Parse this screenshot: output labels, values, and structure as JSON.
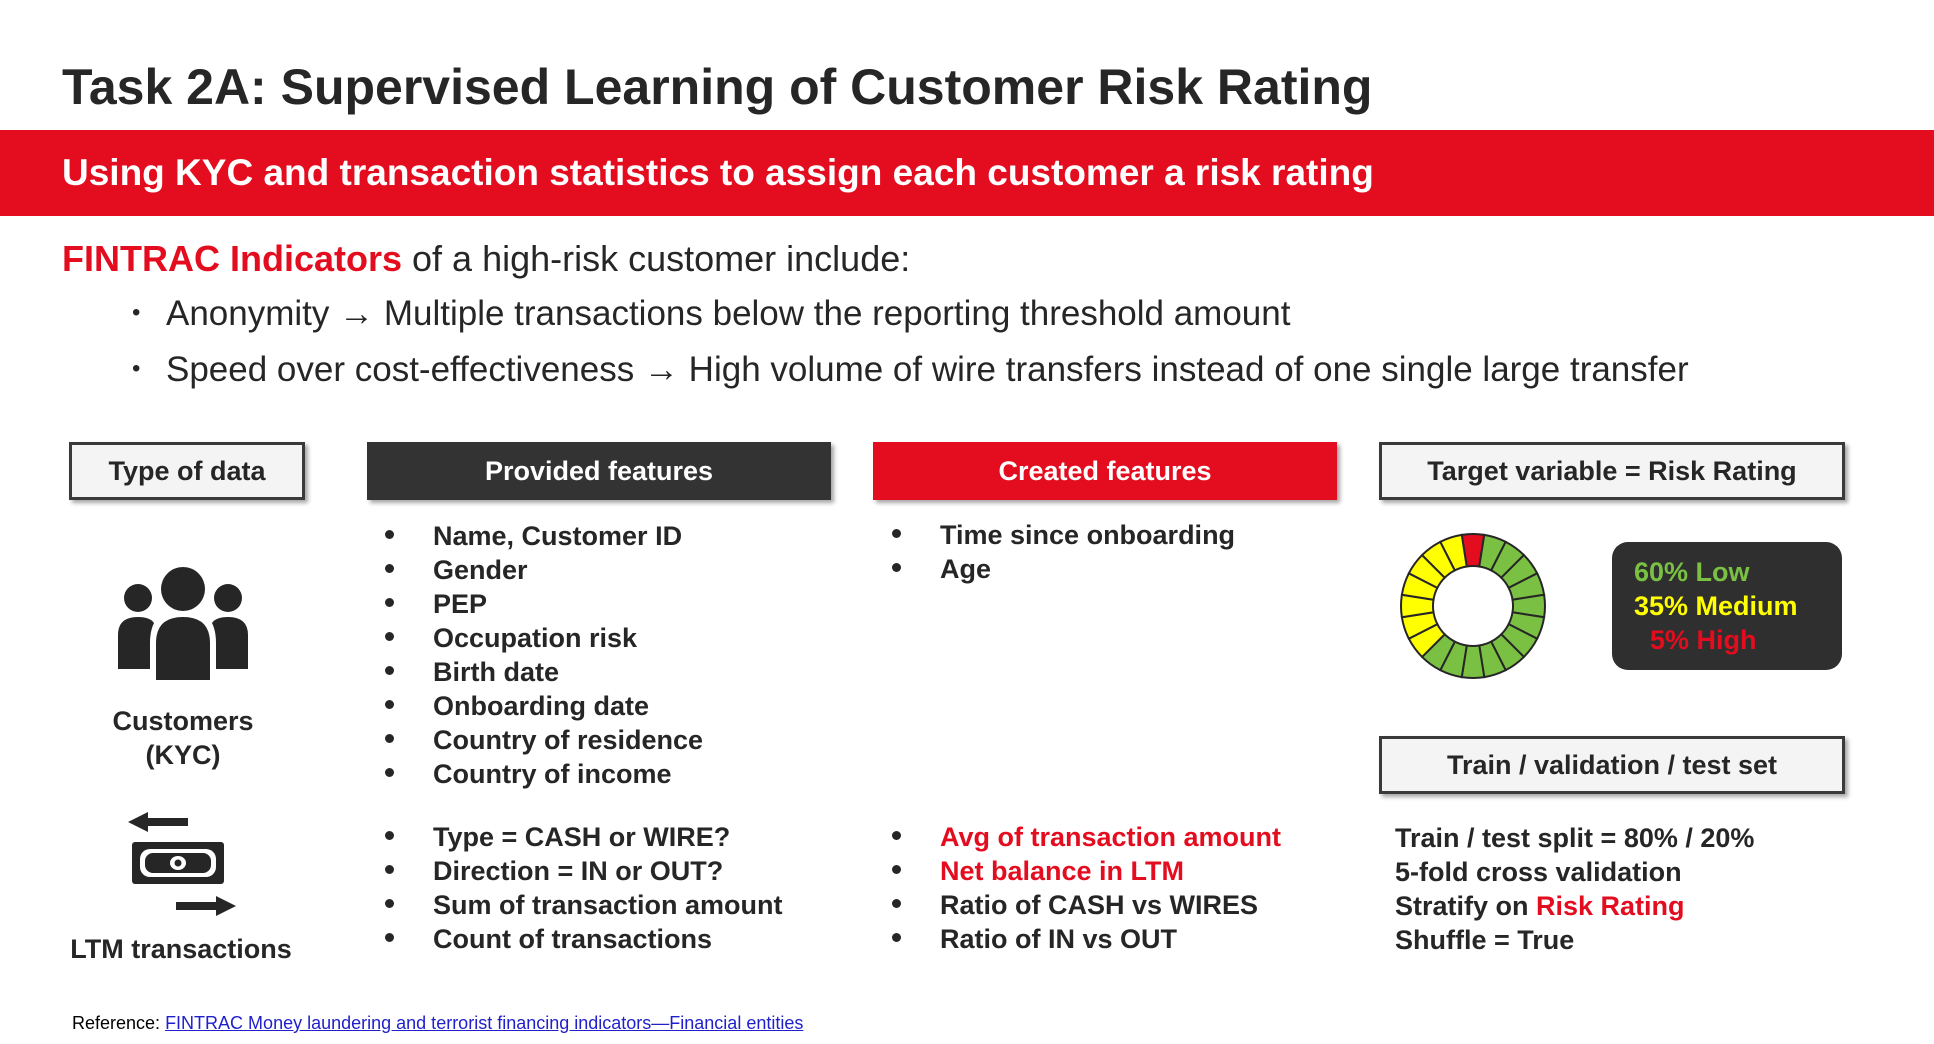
{
  "title": "Task 2A: Supervised Learning of Customer Risk Rating",
  "banner": "Using KYC and transaction statistics to assign each customer a risk rating",
  "intro": {
    "highlight": "FINTRAC Indicators",
    "rest": " of a high-risk customer include:",
    "bullets": [
      "Anonymity → Multiple transactions below the reporting threshold amount",
      "Speed over cost-effectiveness → High volume of wire transfers instead of one single large transfer"
    ]
  },
  "headers": {
    "type_of_data": "Type of data",
    "provided": "Provided features",
    "created": "Created features",
    "target": "Target variable = Risk Rating",
    "split": "Train / validation / test set"
  },
  "data_types": {
    "customers": "Customers\n(KYC)",
    "transactions": "LTM transactions"
  },
  "provided_kyc": [
    "Name, Customer ID",
    "Gender",
    "PEP",
    "Occupation risk",
    "Birth date",
    "Onboarding date",
    "Country of residence",
    "Country of income"
  ],
  "created_kyc": [
    "Time since onboarding",
    "Age"
  ],
  "provided_tx": [
    "Type = CASH or WIRE?",
    "Direction = IN or OUT?",
    "Sum of transaction amount",
    "Count of transactions"
  ],
  "created_tx": {
    "highlighted": [
      "Avg of transaction amount",
      "Net balance in LTM"
    ],
    "normal": [
      "Ratio of CASH vs WIRES",
      "Ratio of IN vs OUT"
    ]
  },
  "risk_distribution": {
    "low": {
      "label": "60% Low",
      "percent": 60,
      "color": "#7ac143"
    },
    "medium": {
      "label": "35% Medium",
      "percent": 35,
      "color": "#ffff00"
    },
    "high": {
      "label": "5% High",
      "percent": 5,
      "color": "#e30d1f"
    }
  },
  "split": {
    "line1": "Train / test split = 80% / 20%",
    "line2": "5-fold cross validation",
    "line3_prefix": "Stratify on ",
    "line3_highlight": "Risk Rating",
    "line4": "Shuffle = True"
  },
  "reference": {
    "prefix": "Reference: ",
    "link": "FINTRAC Money laundering and terrorist financing indicators—Financial entities"
  },
  "colors": {
    "accent": "#e30d1f",
    "dark": "#333333"
  },
  "icons": {
    "customers": "people-group-icon",
    "transactions": "money-transfer-icon"
  }
}
